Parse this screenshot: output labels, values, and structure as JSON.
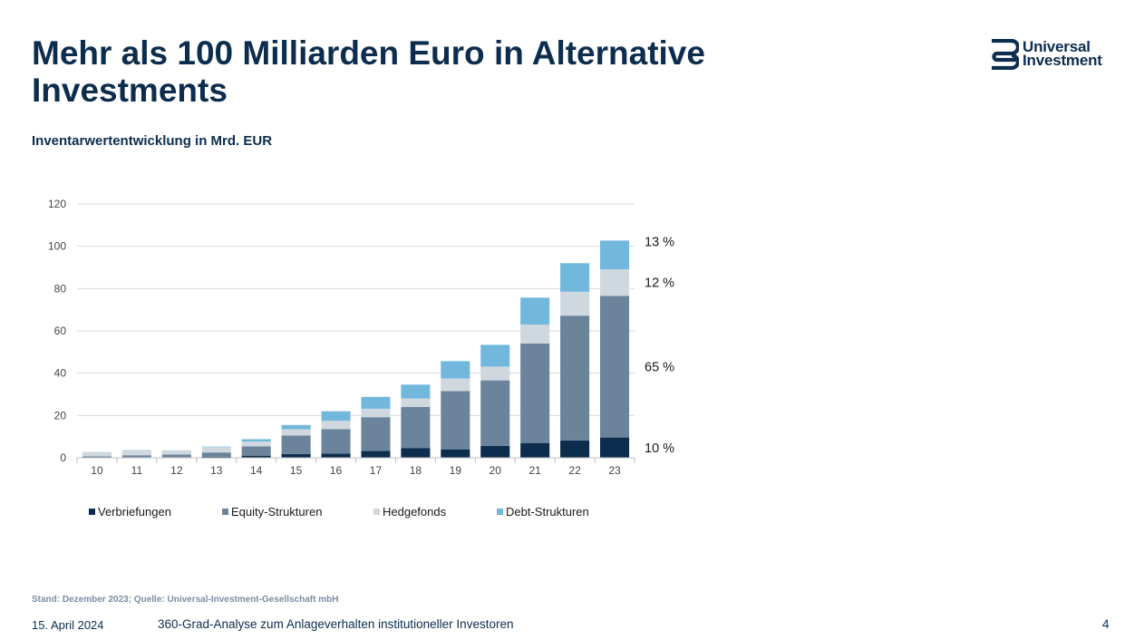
{
  "slide": {
    "title": "Mehr als 100 Milliarden Euro in Alternative Investments",
    "subtitle": "Inventarwertentwicklung in Mrd. EUR",
    "logo": {
      "line1": "Universal",
      "line2": "Investment"
    },
    "source": "Stand: Dezember 2023; Quelle: Universal-Investment-Gesellschaft mbH",
    "footer_date": "15. April 2024",
    "footer_text": "360-Grad-Analyse zum Anlageverhalten institutioneller Investoren",
    "page_number": "4"
  },
  "colors": {
    "text": "#0d2d4e",
    "verbriefungen": "#0d2d4e",
    "equity": "#6b849b",
    "hedgefonds": "#cfd7df",
    "debt": "#72b8dd",
    "grid": "#d9d9d9"
  },
  "chart_data": {
    "type": "bar",
    "stacked": true,
    "categories": [
      "10",
      "11",
      "12",
      "13",
      "14",
      "15",
      "16",
      "17",
      "18",
      "19",
      "20",
      "21",
      "22",
      "23"
    ],
    "series": [
      {
        "name": "Verbriefungen",
        "values": [
          0.2,
          0.3,
          0.3,
          0.5,
          1.0,
          1.8,
          2.0,
          3.2,
          4.5,
          4.0,
          5.6,
          7.0,
          8.2,
          9.6
        ]
      },
      {
        "name": "Equity-Strukturen",
        "values": [
          0.5,
          0.9,
          1.2,
          2.0,
          4.4,
          8.7,
          11.5,
          16.0,
          19.5,
          27.5,
          31.0,
          47.0,
          59.0,
          67.0
        ]
      },
      {
        "name": "Hedgefonds",
        "values": [
          1.9,
          2.4,
          1.9,
          2.6,
          2.3,
          3.0,
          4.0,
          4.0,
          4.0,
          6.0,
          6.5,
          9.0,
          11.3,
          12.5
        ]
      },
      {
        "name": "Debt-Strukturen",
        "values": [
          0.1,
          0.1,
          0.1,
          0.2,
          1.1,
          2.0,
          4.5,
          5.6,
          6.6,
          8.2,
          10.3,
          12.7,
          13.5,
          13.6
        ]
      }
    ],
    "ylim": [
      0,
      120
    ],
    "yticks": [
      0,
      20,
      40,
      60,
      80,
      100,
      120
    ],
    "grid": true,
    "legend_position": "bottom",
    "share_labels": [
      {
        "series": "Debt-Strukturen",
        "label": "13  %"
      },
      {
        "series": "Hedgefonds",
        "label": "12 %"
      },
      {
        "series": "Equity-Strukturen",
        "label": "65 %"
      },
      {
        "series": "Verbriefungen",
        "label": "10 %"
      }
    ]
  }
}
